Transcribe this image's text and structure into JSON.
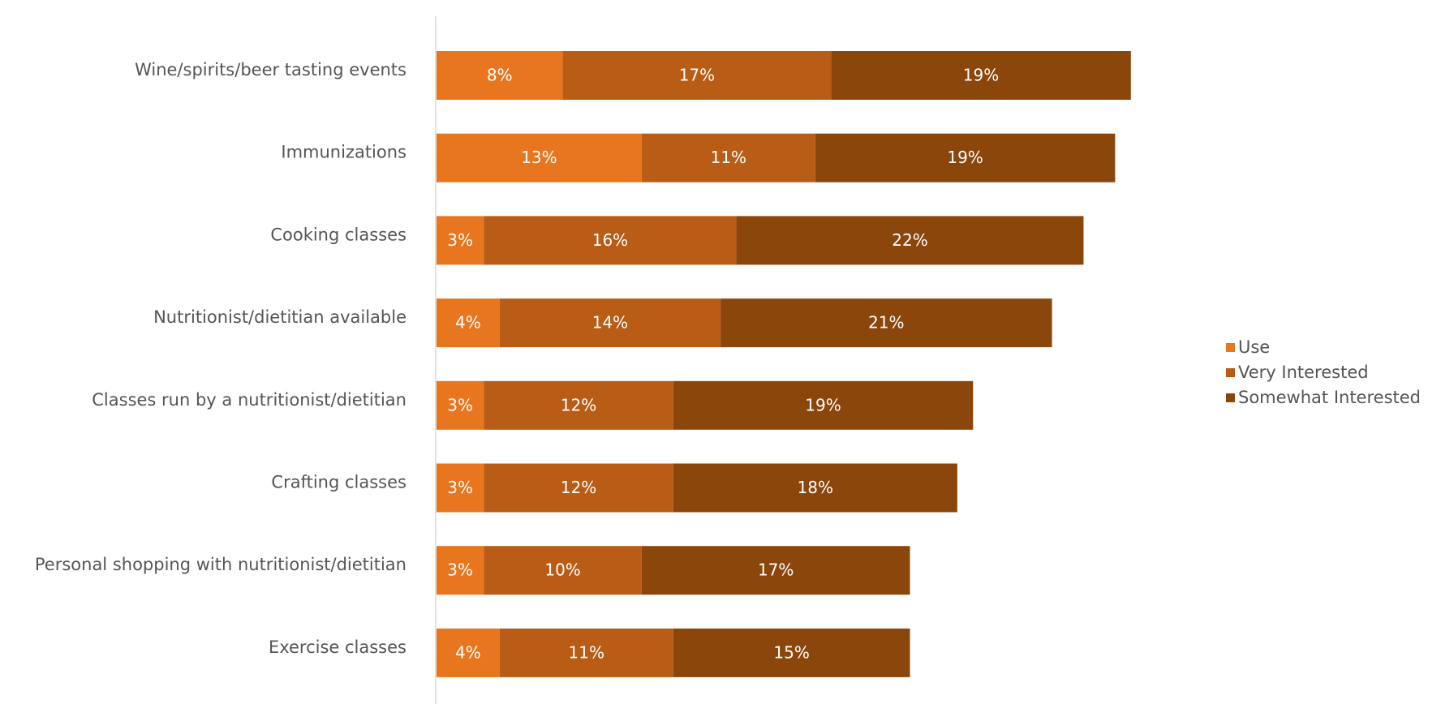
{
  "chart_data": {
    "type": "bar",
    "orientation": "horizontal",
    "stacked": true,
    "title": "",
    "xlabel": "",
    "ylabel": "",
    "xlim": [
      0,
      50
    ],
    "grid": false,
    "legend_position": "right",
    "value_suffix": "%",
    "categories": [
      "Wine/spirits/beer tasting events",
      "Immunizations",
      "Cooking classes",
      "Nutritionist/dietitian available",
      "Classes run by a nutritionist/dietitian",
      "Crafting classes",
      "Personal shopping with nutritionist/dietitian",
      "Exercise classes"
    ],
    "series": [
      {
        "name": "Use",
        "color": "#E8761E",
        "values": [
          8,
          13,
          3,
          4,
          3,
          3,
          3,
          4
        ]
      },
      {
        "name": "Very Interested",
        "color": "#B85C16",
        "values": [
          17,
          11,
          16,
          14,
          12,
          12,
          10,
          11
        ]
      },
      {
        "name": "Somewhat Interested",
        "color": "#8B460C",
        "values": [
          19,
          19,
          22,
          21,
          19,
          18,
          17,
          15
        ]
      }
    ]
  }
}
